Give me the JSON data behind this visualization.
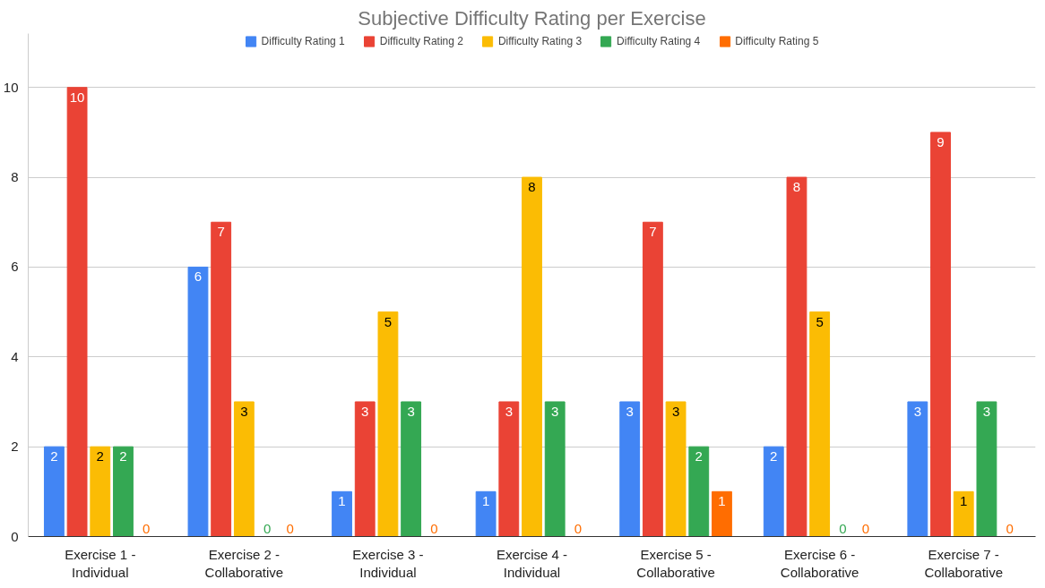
{
  "chart_data": {
    "type": "bar",
    "title": "Subjective Difficulty Rating per Exercise",
    "categories": [
      "Exercise 1 - Individual",
      "Exercise 2 - Collaborative",
      "Exercise 3 - Individual",
      "Exercise 4 - Individual",
      "Exercise 5 - Collaborative",
      "Exercise 6 - Collaborative",
      "Exercise 7 - Collaborative"
    ],
    "series": [
      {
        "name": "Difficulty Rating 1",
        "color": "#4285f4",
        "values": [
          2,
          6,
          1,
          1,
          3,
          2,
          3
        ]
      },
      {
        "name": "Difficulty Rating 2",
        "color": "#ea4335",
        "values": [
          10,
          7,
          3,
          3,
          7,
          8,
          9
        ]
      },
      {
        "name": "Difficulty Rating 3",
        "color": "#fbbc04",
        "values": [
          2,
          3,
          5,
          8,
          3,
          5,
          1
        ]
      },
      {
        "name": "Difficulty Rating 4",
        "color": "#34a853",
        "values": [
          2,
          0,
          3,
          3,
          2,
          0,
          3
        ]
      },
      {
        "name": "Difficulty Rating 5",
        "color": "#ff6d01",
        "values": [
          0,
          0,
          0,
          0,
          1,
          0,
          0
        ]
      }
    ],
    "ylim": [
      0,
      11.2
    ],
    "yticks": [
      0,
      2,
      4,
      6,
      8,
      10
    ],
    "grid": "y",
    "legend": "top",
    "data_labels": true
  }
}
